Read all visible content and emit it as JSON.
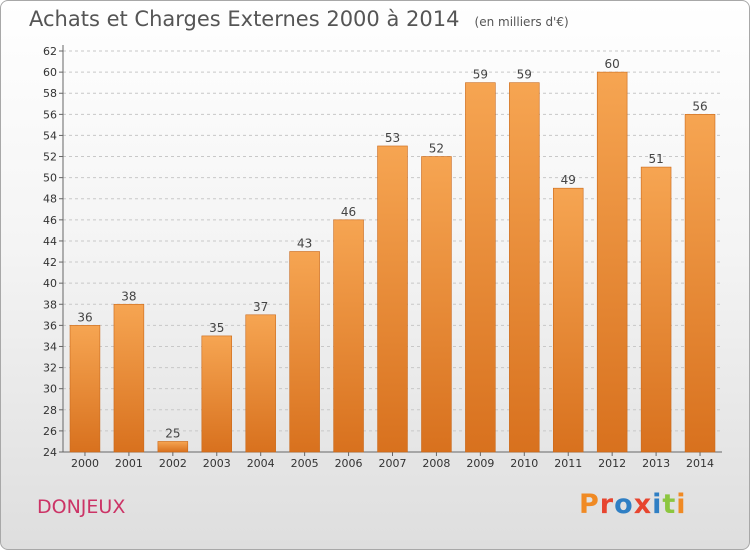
{
  "header": {
    "title": "Achats et Charges Externes 2000 à 2014",
    "unit": "(en milliers d'€)"
  },
  "footer": {
    "commune": "DONJEUX",
    "logo_text": "Proxiti"
  },
  "colors": {
    "bar_top": "#f6a552",
    "bar_bottom": "#d8711e",
    "bar_edge": "#c9681a",
    "commune": "#cc3366",
    "logo_letters": [
      "#f08a24",
      "#e7452f",
      "#2f7fc4",
      "#e7452f",
      "#2f7fc4",
      "#8cc63f",
      "#f08a24"
    ]
  },
  "chart_data": {
    "type": "bar",
    "title": "Achats et Charges Externes 2000 à 2014",
    "subtitle": "(en milliers d'€)",
    "xlabel": "",
    "ylabel": "",
    "categories": [
      "2000",
      "2001",
      "2002",
      "2003",
      "2004",
      "2005",
      "2006",
      "2007",
      "2008",
      "2009",
      "2010",
      "2011",
      "2012",
      "2013",
      "2014"
    ],
    "values": [
      36,
      38,
      25,
      35,
      37,
      43,
      46,
      53,
      52,
      59,
      59,
      49,
      60,
      51,
      56
    ],
    "ylim": [
      24,
      62
    ],
    "yticks": [
      24,
      26,
      28,
      30,
      32,
      34,
      36,
      38,
      40,
      42,
      44,
      46,
      48,
      50,
      52,
      54,
      56,
      58,
      60,
      62
    ],
    "grid": "horizontal-dashed",
    "legend": "none"
  }
}
